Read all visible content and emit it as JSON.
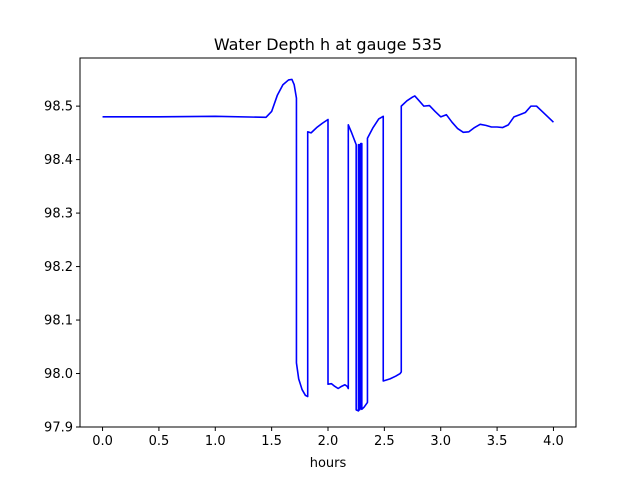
{
  "chart_data": {
    "type": "line",
    "title": "Water Depth h at gauge 535",
    "xlabel": "hours",
    "ylabel": "",
    "xlim": [
      -0.2,
      4.2
    ],
    "ylim": [
      97.9,
      98.59
    ],
    "grid": false,
    "x_ticks": [
      0.0,
      0.5,
      1.0,
      1.5,
      2.0,
      2.5,
      3.0,
      3.5,
      4.0
    ],
    "x_tick_labels": [
      "0.0",
      "0.5",
      "1.0",
      "1.5",
      "2.0",
      "2.5",
      "3.0",
      "3.5",
      "4.0"
    ],
    "y_ticks": [
      97.9,
      98.0,
      98.1,
      98.2,
      98.3,
      98.4,
      98.5
    ],
    "y_tick_labels": [
      "97.9",
      "98.0",
      "98.1",
      "98.2",
      "98.3",
      "98.4",
      "98.5"
    ],
    "series": [
      {
        "color": "#0000ff",
        "points": [
          [
            0.0,
            98.48
          ],
          [
            0.5,
            98.48
          ],
          [
            1.0,
            98.481
          ],
          [
            1.45,
            98.479
          ],
          [
            1.5,
            98.49
          ],
          [
            1.55,
            98.52
          ],
          [
            1.6,
            98.54
          ],
          [
            1.65,
            98.549
          ],
          [
            1.68,
            98.55
          ],
          [
            1.7,
            98.54
          ],
          [
            1.72,
            98.515
          ],
          [
            1.72,
            98.02
          ],
          [
            1.74,
            97.99
          ],
          [
            1.77,
            97.97
          ],
          [
            1.8,
            97.959
          ],
          [
            1.82,
            97.957
          ],
          [
            1.82,
            98.452
          ],
          [
            1.85,
            98.45
          ],
          [
            1.9,
            98.46
          ],
          [
            1.95,
            98.468
          ],
          [
            2.0,
            98.475
          ],
          [
            2.0,
            97.98
          ],
          [
            2.03,
            97.981
          ],
          [
            2.06,
            97.976
          ],
          [
            2.09,
            97.972
          ],
          [
            2.12,
            97.976
          ],
          [
            2.15,
            97.979
          ],
          [
            2.17,
            97.976
          ],
          [
            2.18,
            97.972
          ],
          [
            2.18,
            98.465
          ],
          [
            2.21,
            98.45
          ],
          [
            2.25,
            98.428
          ],
          [
            2.25,
            97.932
          ],
          [
            2.27,
            97.93
          ],
          [
            2.27,
            98.428
          ],
          [
            2.28,
            98.428
          ],
          [
            2.28,
            97.932
          ],
          [
            2.29,
            97.935
          ],
          [
            2.29,
            98.43
          ],
          [
            2.3,
            98.43
          ],
          [
            2.3,
            97.933
          ],
          [
            2.32,
            97.937
          ],
          [
            2.35,
            97.946
          ],
          [
            2.35,
            98.44
          ],
          [
            2.4,
            98.46
          ],
          [
            2.45,
            98.476
          ],
          [
            2.49,
            98.481
          ],
          [
            2.49,
            97.986
          ],
          [
            2.55,
            97.99
          ],
          [
            2.6,
            97.995
          ],
          [
            2.64,
            98.0
          ],
          [
            2.65,
            98.003
          ],
          [
            2.65,
            98.5
          ],
          [
            2.7,
            98.51
          ],
          [
            2.75,
            98.517
          ],
          [
            2.77,
            98.519
          ],
          [
            2.8,
            98.512
          ],
          [
            2.85,
            98.5
          ],
          [
            2.9,
            98.501
          ],
          [
            2.95,
            98.49
          ],
          [
            3.0,
            98.48
          ],
          [
            3.05,
            98.484
          ],
          [
            3.1,
            98.47
          ],
          [
            3.15,
            98.458
          ],
          [
            3.2,
            98.451
          ],
          [
            3.25,
            98.452
          ],
          [
            3.3,
            98.46
          ],
          [
            3.35,
            98.466
          ],
          [
            3.4,
            98.464
          ],
          [
            3.45,
            98.461
          ],
          [
            3.5,
            98.461
          ],
          [
            3.55,
            98.46
          ],
          [
            3.6,
            98.465
          ],
          [
            3.65,
            98.48
          ],
          [
            3.7,
            98.484
          ],
          [
            3.75,
            98.488
          ],
          [
            3.8,
            98.5
          ],
          [
            3.85,
            98.5
          ],
          [
            3.9,
            98.49
          ],
          [
            3.95,
            98.48
          ],
          [
            4.0,
            98.47
          ]
        ]
      }
    ]
  }
}
